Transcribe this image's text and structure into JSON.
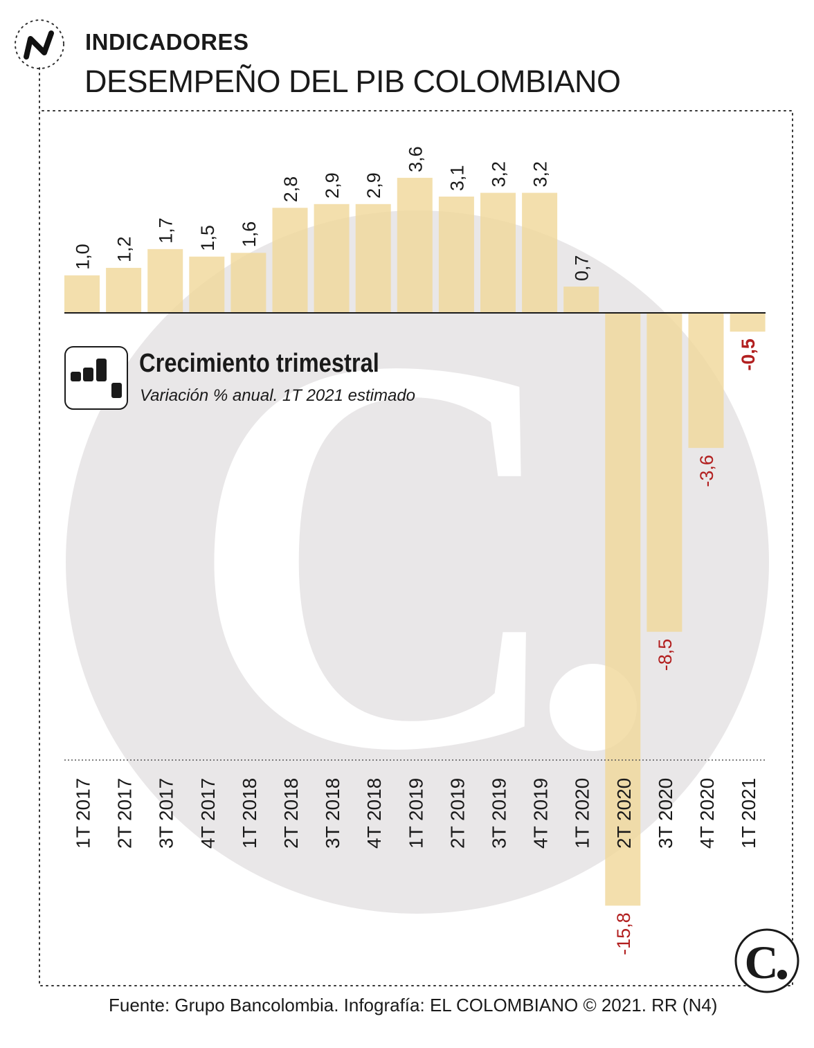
{
  "header": {
    "category": "INDICADORES",
    "title": "DESEMPEÑO DEL PIB COLOMBIANO"
  },
  "legend": {
    "title": "Crecimiento trimestral",
    "subtitle": "Variación % anual. 1T 2021 estimado"
  },
  "source": "Fuente: Grupo Bancolombia. Infografía: EL COLOMBIANO © 2021. RR (N4)",
  "watermark": {
    "letter": "C"
  },
  "colors": {
    "bar": "#f0d89b",
    "negative_label": "#b21f1f",
    "positive_label": "#1a1a1a",
    "watermark": "#e9e7e8",
    "frame": "#333333"
  },
  "chart_data": {
    "type": "bar",
    "categories": [
      "1T 2017",
      "2T 2017",
      "3T 2017",
      "4T 2017",
      "1T 2018",
      "2T 2018",
      "3T 2018",
      "4T 2018",
      "1T 2019",
      "2T 2019",
      "3T 2019",
      "4T 2019",
      "1T 2020",
      "2T 2020",
      "3T 2020",
      "4T 2020",
      "1T 2021"
    ],
    "values": [
      1.0,
      1.2,
      1.7,
      1.5,
      1.6,
      2.8,
      2.9,
      2.9,
      3.6,
      3.1,
      3.2,
      3.2,
      0.7,
      -15.8,
      -8.5,
      -3.6,
      -0.5
    ],
    "value_labels": [
      "1,0",
      "1,2",
      "1,7",
      "1,5",
      "1,6",
      "2,8",
      "2,9",
      "2,9",
      "3,6",
      "3,1",
      "3,2",
      "3,2",
      "0,7",
      "-15,8",
      "-8,5",
      "-3,6",
      "-0,5"
    ],
    "estimated": [
      "1T 2021"
    ],
    "ylim": [
      -15.8,
      3.6
    ]
  }
}
